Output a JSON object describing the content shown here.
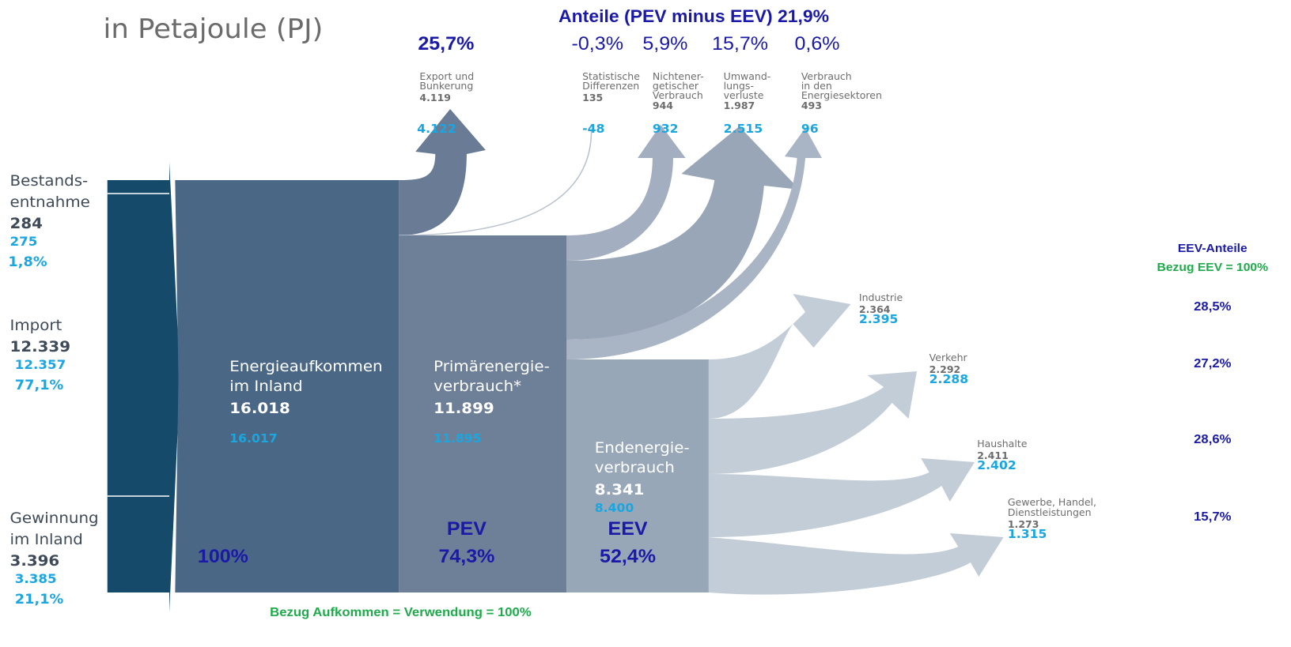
{
  "title": "in Petajoule (PJ)",
  "top_header": "Anteile (PEV minus EEV) 21,9%",
  "export_share": "25,7%",
  "loss_shares": [
    "-0,3%",
    "5,9%",
    "15,7%",
    "0,6%"
  ],
  "sources": [
    {
      "label": [
        "Bestands-",
        "entnahme"
      ],
      "value": "284",
      "new_value": "275",
      "share": "1,8%"
    },
    {
      "label": [
        "Import"
      ],
      "value": "12.339",
      "new_value": "12.357",
      "share": "77,1%"
    },
    {
      "label": [
        "Gewinnung",
        "im Inland"
      ],
      "value": "3.396",
      "new_value": "3.385",
      "share": "21,1%"
    }
  ],
  "blocks": [
    {
      "label": [
        "Energieaufkommen",
        "im Inland"
      ],
      "value": "16.018",
      "new_value": "16.017",
      "share": "100%"
    },
    {
      "label": [
        "Primärenergie-",
        "verbrauch*"
      ],
      "value": "11.899",
      "new_value": "11.895",
      "abbr": "PEV",
      "share": "74,3%"
    },
    {
      "label": [
        "Endenergie-",
        "verbrauch"
      ],
      "value": "8.341",
      "new_value": "8.400",
      "abbr": "EEV",
      "share": "52,4%"
    }
  ],
  "outflows": [
    {
      "label": [
        "Export und",
        "Bunkerung"
      ],
      "value": "4.119",
      "new_value": "4.122"
    },
    {
      "label": [
        "Statistische",
        "Differenzen"
      ],
      "value": "135",
      "new_value": "-48"
    },
    {
      "label": [
        "Nichtener-",
        "getischer",
        "Verbrauch"
      ],
      "value": "944",
      "new_value": "932"
    },
    {
      "label": [
        "Umwand-",
        "lungs-",
        "verluste"
      ],
      "value": "1.987",
      "new_value": "2.515"
    },
    {
      "label": [
        "Verbrauch",
        "in den",
        "Energiesektoren"
      ],
      "value": "493",
      "new_value": "96"
    }
  ],
  "bottom_note": "Bezug Aufkommen = Verwendung = 100%",
  "eev_header": "EEV-Anteile",
  "eev_reference": "Bezug EEV = 100%",
  "final_uses": [
    {
      "label": [
        "Industrie"
      ],
      "value": "2.364",
      "new_value": "2.395",
      "share": "28,5%"
    },
    {
      "label": [
        "Verkehr"
      ],
      "value": "2.292",
      "new_value": "2.288",
      "share": "27,2%"
    },
    {
      "label": [
        "Haushalte"
      ],
      "value": "2.411",
      "new_value": "2.402",
      "share": "28,6%"
    },
    {
      "label": [
        "Gewerbe, Handel,",
        "Dienstleistungen"
      ],
      "value": "1.273",
      "new_value": "1.315",
      "share": "15,7%"
    }
  ]
}
